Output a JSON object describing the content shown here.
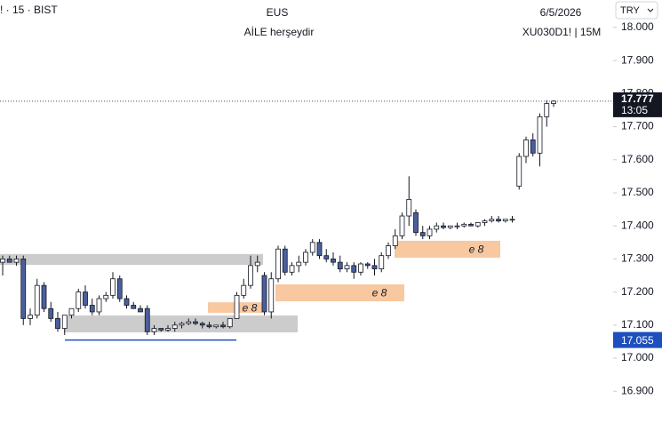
{
  "chart_data": {
    "type": "candlestick",
    "symbol": "! · 15 · BIST",
    "title": "EUS",
    "subtitle": "AİLE herşeydir",
    "date": "6/5/2026",
    "ticker": "XU030D1! | 15M",
    "currency": "TRY",
    "ylim": [
      16.804,
      18.083
    ],
    "yticks": [
      {
        "value": 16.9,
        "label": "16.900"
      },
      {
        "value": 17,
        "label": "17.000"
      },
      {
        "value": 17.1,
        "label": "17.100"
      },
      {
        "value": 17.2,
        "label": "17.200"
      },
      {
        "value": 17.3,
        "label": "17.300"
      },
      {
        "value": 17.4,
        "label": "17.400"
      },
      {
        "value": 17.5,
        "label": "17.500"
      },
      {
        "value": 17.6,
        "label": "17.600"
      },
      {
        "value": 17.7,
        "label": "17.700"
      },
      {
        "value": 17.8,
        "label": "17.800"
      },
      {
        "value": 17.9,
        "label": "17.900"
      },
      {
        "value": 18,
        "label": "18.000"
      }
    ],
    "up_color": "#ffffff",
    "down_color": "#4a5f9d",
    "ohlc": [
      [
        17.29,
        17.31,
        17.25,
        17.3
      ],
      [
        17.3,
        17.31,
        17.29,
        17.29
      ],
      [
        17.29,
        17.31,
        17.28,
        17.3
      ],
      [
        17.3,
        17.31,
        17.1,
        17.12
      ],
      [
        17.12,
        17.15,
        17.1,
        17.13
      ],
      [
        17.13,
        17.24,
        17.12,
        17.22
      ],
      [
        17.22,
        17.23,
        17.14,
        17.15
      ],
      [
        17.15,
        17.17,
        17.11,
        17.12
      ],
      [
        17.12,
        17.14,
        17.08,
        17.09
      ],
      [
        17.09,
        17.13,
        17.07,
        17.13
      ],
      [
        17.13,
        17.15,
        17.12,
        17.15
      ],
      [
        17.15,
        17.21,
        17.14,
        17.2
      ],
      [
        17.2,
        17.22,
        17.15,
        17.16
      ],
      [
        17.16,
        17.18,
        17.13,
        17.14
      ],
      [
        17.14,
        17.19,
        17.13,
        17.18
      ],
      [
        17.18,
        17.2,
        17.17,
        17.19
      ],
      [
        17.19,
        17.26,
        17.18,
        17.24
      ],
      [
        17.24,
        17.25,
        17.17,
        17.18
      ],
      [
        17.18,
        17.19,
        17.15,
        17.16
      ],
      [
        17.16,
        17.17,
        17.15,
        17.15
      ],
      [
        17.15,
        17.16,
        17.14,
        17.14
      ],
      [
        17.15,
        17.16,
        17.07,
        17.08
      ],
      [
        17.08,
        17.1,
        17.07,
        17.09
      ],
      [
        17.09,
        17.09,
        17.08,
        17.085
      ],
      [
        17.085,
        17.1,
        17.08,
        17.09
      ],
      [
        17.09,
        17.11,
        17.08,
        17.1
      ],
      [
        17.1,
        17.11,
        17.09,
        17.105
      ],
      [
        17.105,
        17.12,
        17.1,
        17.11
      ],
      [
        17.11,
        17.12,
        17.1,
        17.105
      ],
      [
        17.105,
        17.11,
        17.09,
        17.1
      ],
      [
        17.1,
        17.11,
        17.09,
        17.095
      ],
      [
        17.095,
        17.1,
        17.09,
        17.1
      ],
      [
        17.1,
        17.11,
        17.09,
        17.095
      ],
      [
        17.095,
        17.12,
        17.09,
        17.12
      ],
      [
        17.12,
        17.2,
        17.12,
        17.19
      ],
      [
        17.19,
        17.24,
        17.18,
        17.22
      ],
      [
        17.22,
        17.31,
        17.21,
        17.28
      ],
      [
        17.28,
        17.31,
        17.26,
        17.29
      ],
      [
        17.25,
        17.26,
        17.13,
        17.14
      ],
      [
        17.14,
        17.26,
        17.12,
        17.24
      ],
      [
        17.24,
        17.34,
        17.23,
        17.33
      ],
      [
        17.33,
        17.34,
        17.25,
        17.26
      ],
      [
        17.26,
        17.29,
        17.25,
        17.28
      ],
      [
        17.28,
        17.31,
        17.26,
        17.29
      ],
      [
        17.29,
        17.33,
        17.28,
        17.32
      ],
      [
        17.32,
        17.36,
        17.31,
        17.35
      ],
      [
        17.35,
        17.36,
        17.3,
        17.31
      ],
      [
        17.31,
        17.33,
        17.29,
        17.3
      ],
      [
        17.3,
        17.32,
        17.28,
        17.29
      ],
      [
        17.29,
        17.31,
        17.26,
        17.27
      ],
      [
        17.27,
        17.29,
        17.26,
        17.28
      ],
      [
        17.28,
        17.29,
        17.24,
        17.26
      ],
      [
        17.26,
        17.29,
        17.25,
        17.285
      ],
      [
        17.285,
        17.29,
        17.27,
        17.28
      ],
      [
        17.28,
        17.3,
        17.25,
        17.27
      ],
      [
        17.27,
        17.32,
        17.26,
        17.31
      ],
      [
        17.31,
        17.35,
        17.3,
        17.34
      ],
      [
        17.34,
        17.39,
        17.33,
        17.37
      ],
      [
        17.37,
        17.44,
        17.36,
        17.43
      ],
      [
        17.43,
        17.55,
        17.4,
        17.48
      ],
      [
        17.44,
        17.45,
        17.37,
        17.38
      ],
      [
        17.38,
        17.4,
        17.36,
        17.37
      ],
      [
        17.37,
        17.4,
        17.36,
        17.39
      ],
      [
        17.39,
        17.41,
        17.38,
        17.4
      ],
      [
        17.4,
        17.41,
        17.39,
        17.395
      ],
      [
        17.395,
        17.4,
        17.39,
        17.4
      ],
      [
        17.4,
        17.41,
        17.39,
        17.4
      ],
      [
        17.4,
        17.41,
        17.395,
        17.405
      ],
      [
        17.405,
        17.41,
        17.4,
        17.4
      ],
      [
        17.4,
        17.41,
        17.395,
        17.41
      ],
      [
        17.41,
        17.42,
        17.4,
        17.415
      ],
      [
        17.415,
        17.43,
        17.41,
        17.42
      ],
      [
        17.42,
        17.43,
        17.41,
        17.415
      ],
      [
        17.415,
        17.42,
        17.41,
        17.42
      ],
      [
        17.42,
        17.43,
        17.41,
        17.42
      ],
      [
        17.52,
        17.62,
        17.51,
        17.61
      ],
      [
        17.61,
        17.67,
        17.59,
        17.66
      ],
      [
        17.66,
        17.68,
        17.61,
        17.62
      ],
      [
        17.62,
        17.74,
        17.58,
        17.73
      ],
      [
        17.73,
        17.78,
        17.7,
        17.77
      ],
      [
        17.77,
        17.78,
        17.76,
        17.777
      ]
    ],
    "zones": [
      {
        "top": 17.315,
        "bottom": 17.282,
        "color": "#cccccc"
      },
      {
        "top": 17.129,
        "bottom": 17.078,
        "color": "#cccccc"
      },
      {
        "top": 17.169,
        "bottom": 17.137,
        "color": "#f8c8a0",
        "label": "e 8"
      },
      {
        "top": 17.223,
        "bottom": 17.172,
        "color": "#f8c8a0",
        "label": "e 8"
      },
      {
        "top": 17.355,
        "bottom": 17.304,
        "color": "#f8c8a0",
        "label": "e 8"
      }
    ],
    "last_price": {
      "value": 17.777,
      "label": "17.777",
      "time": "13:05"
    },
    "level": {
      "value": 17.055,
      "label": "17.055",
      "color": "#1e4fbf"
    }
  }
}
